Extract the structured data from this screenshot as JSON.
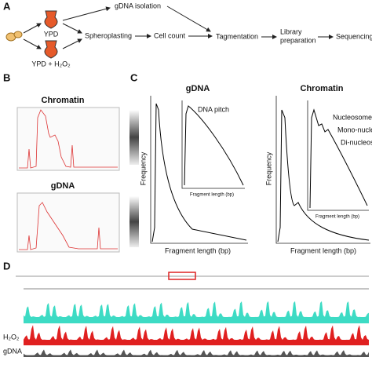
{
  "panel_a": {
    "label": "A",
    "conditions": [
      "YPD",
      "YPD + H₂O₂"
    ],
    "steps": [
      "gDNA isolation",
      "Spheroplasting",
      "Cell count",
      "Tagmentation",
      "Library",
      "preparation",
      "Sequencing"
    ]
  },
  "panel_b": {
    "label": "B",
    "titles": [
      "Chromatin",
      "gDNA"
    ]
  },
  "panel_c": {
    "label": "C",
    "titles": [
      "gDNA",
      "Chromatin"
    ],
    "y_label": "Frequency",
    "x_label": "Fragment length (bp)",
    "annotations": [
      "DNA pitch",
      "Nucleosome-free",
      "Mono-nucleosomes",
      "Di-nucleosomes"
    ]
  },
  "panel_d": {
    "label": "D",
    "tracks": [
      "H₂O₂",
      "gDNA"
    ]
  }
}
